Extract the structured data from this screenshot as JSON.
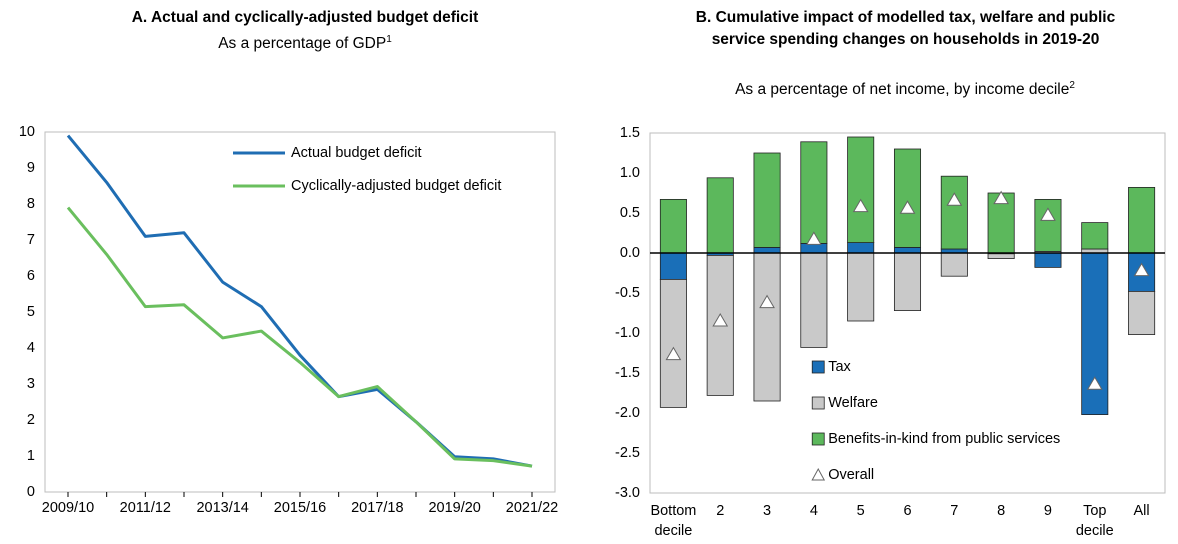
{
  "chart_data": [
    {
      "type": "line",
      "title": "A. Actual and cyclically-adjusted budget deficit",
      "subtitle": "As a percentage of GDP",
      "subtitle_note": "1",
      "categories": [
        "2009/10",
        null,
        "2011/12",
        null,
        "2013/14",
        null,
        "2015/16",
        null,
        "2017/18",
        null,
        "2019/20",
        null,
        "2021/22"
      ],
      "series": [
        {
          "name": "Actual budget deficit",
          "color": "#1f6db3",
          "values": [
            9.9,
            8.6,
            7.1,
            7.2,
            5.83,
            5.15,
            3.8,
            2.65,
            2.85,
            1.95,
            0.98,
            0.92,
            0.72
          ]
        },
        {
          "name": "Cyclically-adjusted budget deficit",
          "color": "#6abf5e",
          "values": [
            7.9,
            6.6,
            5.15,
            5.2,
            4.28,
            4.47,
            3.6,
            2.65,
            2.93,
            1.95,
            0.92,
            0.87,
            0.72
          ]
        }
      ],
      "ylim": [
        0,
        10
      ],
      "yticks": [
        0,
        1,
        2,
        3,
        4,
        5,
        6,
        7,
        8,
        9,
        10
      ],
      "grid": false,
      "legend": "upper right"
    },
    {
      "type": "bar",
      "title": "B. Cumulative impact of modelled tax, welfare and public service spending changes on households in 2019-20",
      "subtitle": "As a percentage of net income, by income decile",
      "subtitle_note": "2",
      "categories": [
        "Bottom decile",
        "2",
        "3",
        "4",
        "5",
        "6",
        "7",
        "8",
        "9",
        "Top decile",
        "All"
      ],
      "series": [
        {
          "name": "Tax",
          "color": "#1a6fb8",
          "values": [
            -0.33,
            -0.03,
            0.07,
            0.12,
            0.13,
            0.07,
            0.05,
            -0.01,
            -0.18,
            -2.02,
            -0.48
          ]
        },
        {
          "name": "Welfare",
          "color": "#c9c9c9",
          "values": [
            -1.6,
            -1.75,
            -1.85,
            -1.18,
            -0.85,
            -0.72,
            -0.29,
            -0.06,
            0.02,
            0.05,
            -0.54
          ]
        },
        {
          "name": "Benefits-in-kind from public services",
          "color": "#5cb85c",
          "values": [
            0.67,
            0.94,
            1.18,
            1.27,
            1.32,
            1.23,
            0.91,
            0.75,
            0.65,
            0.33,
            0.82
          ]
        },
        {
          "name": "Overall",
          "type": "marker",
          "color": "#ffffff",
          "values": [
            -1.27,
            -0.85,
            -0.62,
            0.17,
            0.58,
            0.56,
            0.66,
            0.68,
            0.47,
            -1.64,
            -0.22
          ]
        }
      ],
      "ylim": [
        -3,
        1.5
      ],
      "yticks": [
        {
          "value": -3,
          "label": "-3.0"
        },
        -2.5,
        {
          "value": -2,
          "label": "-2.0"
        },
        -1.5,
        {
          "value": -1,
          "label": "-1.0"
        },
        -0.5,
        {
          "value": 0,
          "label": "0.0"
        },
        0.5,
        {
          "value": 1,
          "label": "1.0"
        },
        1.5
      ],
      "grid": false,
      "legend": "lower center"
    }
  ]
}
